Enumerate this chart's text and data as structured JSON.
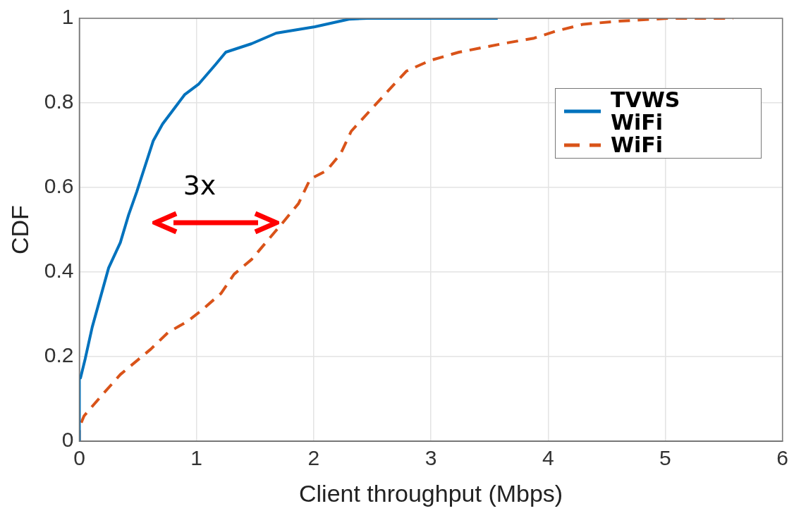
{
  "chart_data": {
    "type": "line",
    "xlabel": "Client throughput (Mbps)",
    "ylabel": "CDF",
    "xlim": [
      0,
      6
    ],
    "xticks": [
      0,
      1,
      2,
      3,
      4,
      5,
      6
    ],
    "ylim": [
      0,
      1
    ],
    "yticks": [
      0,
      0.2,
      0.4,
      0.6,
      0.8,
      1
    ],
    "grid": true,
    "legend": "top right",
    "marker": "none",
    "series": [
      {
        "name": "TVWS WiFi",
        "color": "#0072bd",
        "line_style": "solid",
        "x": [
          0,
          0,
          0.01,
          0.05,
          0.11,
          0.16,
          0.25,
          0.35,
          0.42,
          0.49,
          0.63,
          0.71,
          0.9,
          1.02,
          1.16,
          1.25,
          1.47,
          1.68,
          2.01,
          2.3,
          2.46,
          3.57
        ],
        "values": [
          0,
          0.15,
          0.15,
          0.195,
          0.27,
          0.32,
          0.41,
          0.47,
          0.535,
          0.59,
          0.71,
          0.75,
          0.82,
          0.845,
          0.89,
          0.92,
          0.94,
          0.965,
          0.98,
          0.998,
          1,
          1
        ]
      },
      {
        "name": "WiFi",
        "color": "#d95319",
        "line_style": "dashed",
        "x": [
          0,
          0,
          0.04,
          0.18,
          0.35,
          0.61,
          0.76,
          0.92,
          1.04,
          1.21,
          1.32,
          1.47,
          1.61,
          1.73,
          1.87,
          1.97,
          2.11,
          2.23,
          2.32,
          2.54,
          2.79,
          2.99,
          3.24,
          3.61,
          3.88,
          4.07,
          4.3,
          4.59,
          5.02,
          5.58
        ],
        "values": [
          0,
          0.033,
          0.06,
          0.105,
          0.158,
          0.218,
          0.258,
          0.283,
          0.309,
          0.35,
          0.395,
          0.43,
          0.476,
          0.515,
          0.562,
          0.62,
          0.64,
          0.68,
          0.733,
          0.8,
          0.875,
          0.9,
          0.92,
          0.94,
          0.953,
          0.97,
          0.986,
          0.993,
          1,
          1
        ]
      }
    ],
    "annotations": [
      "3x"
    ]
  }
}
